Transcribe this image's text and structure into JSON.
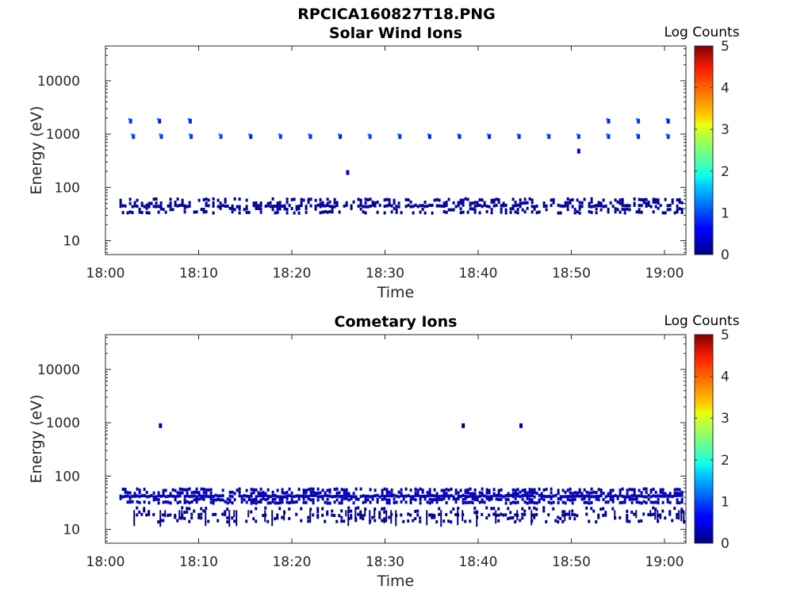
{
  "figure": {
    "title": "RPCICA160827T18.PNG"
  },
  "chart_data": [
    {
      "type": "heatmap",
      "title": "Solar Wind Ions",
      "xlabel": "Time",
      "ylabel": "Energy (eV)",
      "x_ticks": [
        "18:00",
        "18:10",
        "18:20",
        "18:30",
        "18:40",
        "18:50",
        "19:00"
      ],
      "y_ticks": [
        "10",
        "100",
        "1000",
        "10000"
      ],
      "y_scale": "log",
      "ylim": [
        5.5,
        45000
      ],
      "xlim_minutes": [
        0,
        62.3
      ],
      "colorbar": {
        "label": "Log Counts",
        "range": [
          0,
          5
        ],
        "ticks": [
          "0",
          "1",
          "2",
          "3",
          "4",
          "5"
        ]
      },
      "bands": [
        {
          "energy": 48,
          "time_range": [
            1.5,
            62
          ],
          "log_counts": 0.1,
          "density": 0.65
        },
        {
          "energy": 900,
          "times": [
            3,
            6,
            9.2,
            12.4,
            15.6,
            18.8,
            22,
            25.2,
            28.4,
            31.6,
            34.8,
            38,
            41.2,
            44.4,
            47.6,
            50.8,
            54,
            57.2,
            60.4
          ],
          "log_counts": 0.9
        },
        {
          "energy": 1750,
          "times": [
            2.7,
            5.8,
            9.1,
            54,
            57.2,
            60.4
          ],
          "log_counts": 0.8
        },
        {
          "energy": 190,
          "times": [
            26
          ],
          "log_counts": 0.5
        },
        {
          "energy": 480,
          "times": [
            50.8
          ],
          "log_counts": 0.5
        }
      ]
    },
    {
      "type": "heatmap",
      "title": "Cometary Ions",
      "xlabel": "Time",
      "ylabel": "Energy (eV)",
      "x_ticks": [
        "18:00",
        "18:10",
        "18:20",
        "18:30",
        "18:40",
        "18:50",
        "19:00"
      ],
      "y_ticks": [
        "10",
        "100",
        "1000",
        "10000"
      ],
      "y_scale": "log",
      "ylim": [
        5.5,
        45000
      ],
      "xlim_minutes": [
        0,
        62.3
      ],
      "colorbar": {
        "label": "Log Counts",
        "range": [
          0,
          5
        ],
        "ticks": [
          "0",
          "1",
          "2",
          "3",
          "4",
          "5"
        ]
      },
      "bands": [
        {
          "energy": 45,
          "time_range": [
            1.5,
            62
          ],
          "log_counts": 0.25,
          "density": 0.95
        },
        {
          "energy": 20,
          "time_range": [
            3,
            62
          ],
          "log_counts": 0.1,
          "density": 0.35
        },
        {
          "energy": 880,
          "times": [
            5.9,
            38.4,
            44.6
          ],
          "log_counts": 0.2
        }
      ]
    }
  ]
}
